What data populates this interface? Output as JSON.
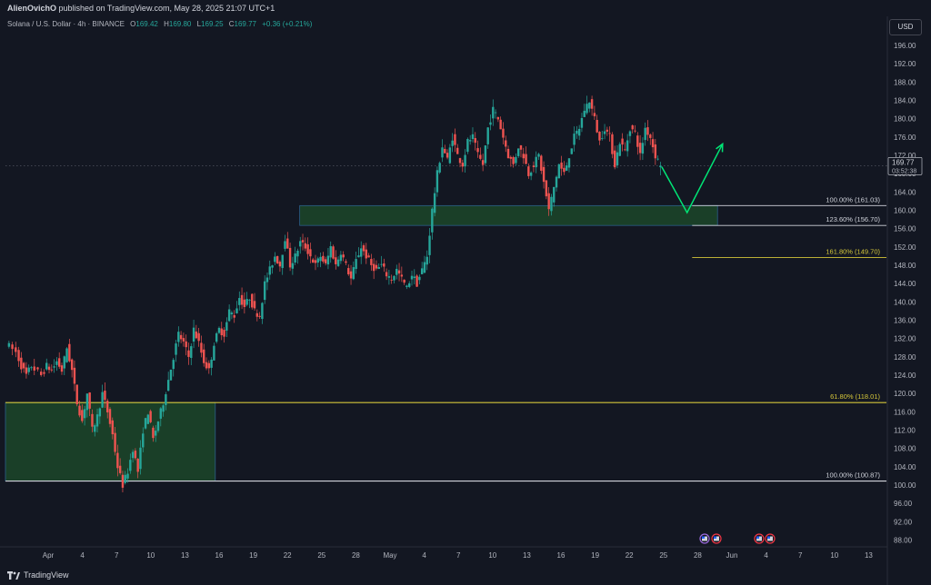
{
  "header": {
    "author": "AlienOvichO",
    "publish_text": "published on TradingView.com, May 28, 2025 21:07 UTC+1"
  },
  "legend": {
    "symbol": "Solana / U.S. Dollar · 4h · BINANCE",
    "open_label": "O",
    "open": "169.42",
    "high_label": "H",
    "high": "169.80",
    "low_label": "L",
    "low": "169.25",
    "close_label": "C",
    "close": "169.77",
    "change": "+0.36 (+0.21%)"
  },
  "currency": "USD",
  "footer": {
    "brand": "TradingView"
  },
  "colors": {
    "background": "#131722",
    "up": "#26a69a",
    "down": "#ef5350",
    "fib_yellow": "#d4c63a",
    "zone_fill": "#1e4d2b",
    "projection": "#00e676"
  },
  "chart_data": {
    "type": "candlestick",
    "y_ticks": [
      "88.00",
      "92.00",
      "96.00",
      "100.00",
      "104.00",
      "108.00",
      "112.00",
      "116.00",
      "120.00",
      "124.00",
      "128.00",
      "132.00",
      "136.00",
      "140.00",
      "144.00",
      "148.00",
      "152.00",
      "156.00",
      "160.00",
      "164.00",
      "168.00",
      "172.00",
      "176.00",
      "180.00",
      "184.00",
      "188.00",
      "192.00",
      "196.00"
    ],
    "ylim": [
      86.5,
      198
    ],
    "x_ticks": [
      "Apr",
      "4",
      "7",
      "10",
      "13",
      "16",
      "19",
      "22",
      "25",
      "28",
      "May",
      "4",
      "7",
      "10",
      "13",
      "16",
      "19",
      "22",
      "25",
      "28",
      "Jun",
      "4",
      "7",
      "10",
      "13"
    ],
    "current_price": {
      "value": 169.77,
      "label": "169.77",
      "countdown": "03:52:38"
    },
    "fib_levels": [
      {
        "label": "100.00% (161.03)",
        "value": 161.03,
        "color": "white"
      },
      {
        "label": "123.60% (156.70)",
        "value": 156.7,
        "color": "white"
      },
      {
        "label": "161.80% (149.70)",
        "value": 149.7,
        "color": "yellow"
      },
      {
        "label": "61.80% (118.01)",
        "value": 118.01,
        "color": "yellow"
      },
      {
        "label": "100.00% (100.87)",
        "value": 100.87,
        "color": "white"
      }
    ],
    "zones": [
      {
        "from_index": 58,
        "to_index": 140,
        "top": 161.03,
        "bottom": 156.7
      },
      {
        "from_index": 0,
        "to_index": 41,
        "top": 118.01,
        "bottom": 100.87
      }
    ],
    "projection": [
      {
        "index": 129,
        "price": 169.5
      },
      {
        "index": 134,
        "price": 159.5
      },
      {
        "index": 141,
        "price": 174.5
      }
    ],
    "ohlc_path": [
      [
        0,
        131
      ],
      [
        2,
        129
      ],
      [
        3,
        126
      ],
      [
        4,
        124
      ],
      [
        5,
        126
      ],
      [
        7,
        124
      ],
      [
        8,
        126
      ],
      [
        9,
        125
      ],
      [
        10,
        127
      ],
      [
        11,
        125
      ],
      [
        12,
        130
      ],
      [
        13,
        125
      ],
      [
        14,
        118
      ],
      [
        15,
        114
      ],
      [
        16,
        120
      ],
      [
        17,
        112
      ],
      [
        18,
        115
      ],
      [
        19,
        120
      ],
      [
        20,
        116
      ],
      [
        21,
        111
      ],
      [
        22,
        104
      ],
      [
        23,
        100
      ],
      [
        24,
        103
      ],
      [
        25,
        108
      ],
      [
        26,
        103
      ],
      [
        27,
        112
      ],
      [
        28,
        116
      ],
      [
        29,
        110
      ],
      [
        30,
        114
      ],
      [
        31,
        118
      ],
      [
        32,
        123
      ],
      [
        33,
        128
      ],
      [
        34,
        133
      ],
      [
        35,
        131
      ],
      [
        36,
        128
      ],
      [
        37,
        134
      ],
      [
        38,
        131
      ],
      [
        39,
        127
      ],
      [
        40,
        125
      ],
      [
        41,
        131
      ],
      [
        42,
        134
      ],
      [
        43,
        133
      ],
      [
        44,
        138
      ],
      [
        45,
        137
      ],
      [
        46,
        141
      ],
      [
        47,
        139
      ],
      [
        48,
        141
      ],
      [
        49,
        138
      ],
      [
        50,
        137
      ],
      [
        51,
        144
      ],
      [
        52,
        147
      ],
      [
        53,
        150
      ],
      [
        54,
        148
      ],
      [
        55,
        154
      ],
      [
        56,
        148
      ],
      [
        57,
        150
      ],
      [
        58,
        153
      ],
      [
        59,
        152
      ],
      [
        60,
        150
      ],
      [
        61,
        148
      ],
      [
        62,
        150
      ],
      [
        63,
        148
      ],
      [
        64,
        152
      ],
      [
        65,
        148
      ],
      [
        66,
        151
      ],
      [
        67,
        148
      ],
      [
        68,
        145
      ],
      [
        69,
        149
      ],
      [
        70,
        152
      ],
      [
        71,
        150
      ],
      [
        72,
        148
      ],
      [
        73,
        147
      ],
      [
        74,
        148
      ],
      [
        75,
        146
      ],
      [
        76,
        145
      ],
      [
        77,
        147
      ],
      [
        78,
        145
      ],
      [
        79,
        143
      ],
      [
        80,
        146
      ],
      [
        81,
        144
      ],
      [
        82,
        147
      ],
      [
        83,
        150
      ],
      [
        84,
        160
      ],
      [
        85,
        168
      ],
      [
        86,
        174
      ],
      [
        87,
        171
      ],
      [
        88,
        176
      ],
      [
        89,
        172
      ],
      [
        90,
        170
      ],
      [
        91,
        175
      ],
      [
        92,
        176
      ],
      [
        93,
        172
      ],
      [
        94,
        170
      ],
      [
        95,
        178
      ],
      [
        96,
        182
      ],
      [
        97,
        180
      ],
      [
        98,
        176
      ],
      [
        99,
        172
      ],
      [
        100,
        170
      ],
      [
        101,
        174
      ],
      [
        102,
        172
      ],
      [
        103,
        168
      ],
      [
        104,
        170
      ],
      [
        105,
        172
      ],
      [
        106,
        166
      ],
      [
        107,
        160
      ],
      [
        108,
        165
      ],
      [
        109,
        170
      ],
      [
        110,
        168
      ],
      [
        111,
        172
      ],
      [
        112,
        176
      ],
      [
        113,
        178
      ],
      [
        114,
        182
      ],
      [
        115,
        184
      ],
      [
        116,
        180
      ],
      [
        117,
        175
      ],
      [
        118,
        178
      ],
      [
        119,
        176
      ],
      [
        120,
        170
      ],
      [
        121,
        175
      ],
      [
        122,
        173
      ],
      [
        123,
        178
      ],
      [
        124,
        177
      ],
      [
        125,
        172
      ],
      [
        126,
        178
      ],
      [
        127,
        176
      ],
      [
        128,
        172
      ],
      [
        129,
        169.8
      ]
    ]
  }
}
